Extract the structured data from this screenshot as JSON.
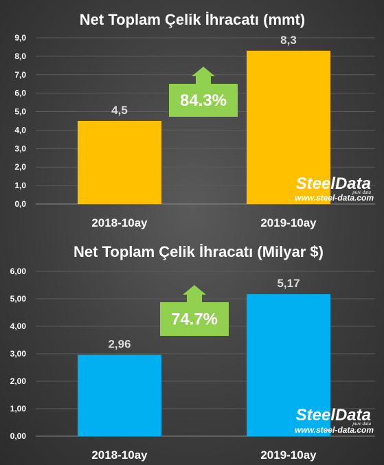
{
  "chart_data": [
    {
      "type": "bar",
      "title": "Net Toplam Çelik İhracatı (mmt)",
      "categories": [
        "2018-10ay",
        "2019-10ay"
      ],
      "values": [
        4.5,
        8.3
      ],
      "value_labels": [
        "4,5",
        "8,3"
      ],
      "ylim": [
        0,
        9
      ],
      "yticks": [
        "0,0",
        "1,0",
        "2,0",
        "3,0",
        "4,0",
        "5,0",
        "6,0",
        "7,0",
        "8,0",
        "9,0"
      ],
      "bar_color": "#ffc000",
      "grid": true,
      "change_label": "84.3%",
      "change_color": "#92d050"
    },
    {
      "type": "bar",
      "title": "Net Toplam Çelik İhracatı (Milyar $)",
      "categories": [
        "2018-10ay",
        "2019-10ay"
      ],
      "values": [
        2.96,
        5.17
      ],
      "value_labels": [
        "2,96",
        "5,17"
      ],
      "ylim": [
        0,
        6
      ],
      "yticks": [
        "0,00",
        "1,00",
        "2,00",
        "3,00",
        "4,00",
        "5,00",
        "6,00"
      ],
      "bar_color": "#00b0f0",
      "grid": true,
      "change_label": "74.7%",
      "change_color": "#92d050"
    }
  ],
  "watermark": {
    "brand": "SteelData",
    "tagline": "pure data",
    "url": "www.steel-data.com"
  }
}
